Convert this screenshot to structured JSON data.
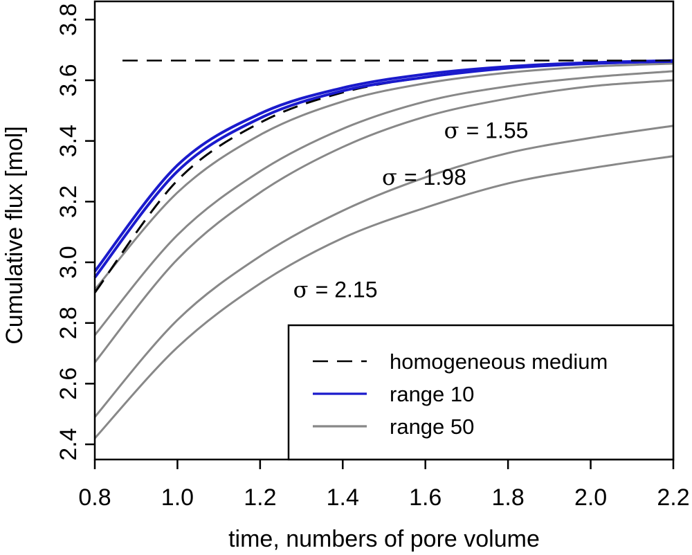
{
  "chart_data": {
    "type": "line",
    "xlabel": "time, numbers of pore volume",
    "ylabel": "Cumulative flux [mol]",
    "xlim": [
      0.8,
      2.2
    ],
    "ylim": [
      2.35,
      3.86
    ],
    "xticks": [
      0.8,
      1.0,
      1.2,
      1.4,
      1.6,
      1.8,
      2.0,
      2.2
    ],
    "xtick_labels": [
      "0.8",
      "1.0",
      "1.2",
      "1.4",
      "1.6",
      "1.8",
      "2.0",
      "2.2"
    ],
    "yticks": [
      2.4,
      2.6,
      2.8,
      3.0,
      3.2,
      3.4,
      3.6,
      3.8
    ],
    "ytick_labels": [
      "2.4",
      "2.6",
      "2.8",
      "3.0",
      "3.2",
      "3.4",
      "3.6",
      "3.8"
    ],
    "grid": false,
    "legend_position": "bottom-right",
    "legend": [
      {
        "label": "homogeneous medium",
        "color": "#000000",
        "style": "dashed"
      },
      {
        "label": "range 10",
        "color": "#1a1acc",
        "style": "solid"
      },
      {
        "label": "range 50",
        "color": "#888888",
        "style": "solid"
      }
    ],
    "reference_line": {
      "name": "asymptote",
      "y": 3.665,
      "color": "#000000",
      "style": "dashed"
    },
    "series": [
      {
        "name": "homogeneous medium",
        "group": "homogeneous medium",
        "color": "#000000",
        "style": "dashed",
        "x": [
          0.8,
          1.0,
          1.2,
          1.4,
          1.6,
          1.8,
          2.0,
          2.2
        ],
        "y": [
          2.9,
          3.27,
          3.46,
          3.56,
          3.61,
          3.64,
          3.655,
          3.665
        ]
      },
      {
        "name": "range 10 (1)",
        "group": "range 10",
        "color": "#1a1acc",
        "style": "solid",
        "x": [
          0.8,
          1.0,
          1.2,
          1.4,
          1.6,
          1.8,
          2.0,
          2.2
        ],
        "y": [
          2.97,
          3.32,
          3.49,
          3.575,
          3.62,
          3.645,
          3.658,
          3.665
        ]
      },
      {
        "name": "range 10 (2)",
        "group": "range 10",
        "color": "#1a1acc",
        "style": "solid",
        "x": [
          0.8,
          1.0,
          1.2,
          1.4,
          1.6,
          1.8,
          2.0,
          2.2
        ],
        "y": [
          2.95,
          3.3,
          3.475,
          3.565,
          3.61,
          3.64,
          3.655,
          3.662
        ]
      },
      {
        "name": "range 50 (1)",
        "group": "range 50",
        "color": "#888888",
        "style": "solid",
        "x": [
          0.8,
          1.0,
          1.2,
          1.4,
          1.6,
          1.8,
          2.0,
          2.2
        ],
        "y": [
          2.91,
          3.23,
          3.42,
          3.53,
          3.59,
          3.625,
          3.645,
          3.655
        ]
      },
      {
        "name": "range 50 (2) σ = 1.55",
        "group": "range 50",
        "color": "#888888",
        "style": "solid",
        "x": [
          0.8,
          1.0,
          1.2,
          1.4,
          1.6,
          1.8,
          2.0,
          2.2
        ],
        "y": [
          2.76,
          3.09,
          3.3,
          3.44,
          3.53,
          3.58,
          3.61,
          3.63
        ]
      },
      {
        "name": "range 50 (3)",
        "group": "range 50",
        "color": "#888888",
        "style": "solid",
        "x": [
          0.8,
          1.0,
          1.2,
          1.4,
          1.6,
          1.8,
          2.0,
          2.2
        ],
        "y": [
          2.67,
          3.01,
          3.23,
          3.38,
          3.48,
          3.54,
          3.58,
          3.6
        ]
      },
      {
        "name": "range 50 (4) σ = 1.98",
        "group": "range 50",
        "color": "#888888",
        "style": "solid",
        "x": [
          0.8,
          1.0,
          1.2,
          1.4,
          1.6,
          1.8,
          2.0,
          2.2
        ],
        "y": [
          2.49,
          2.81,
          3.02,
          3.17,
          3.28,
          3.36,
          3.41,
          3.45
        ]
      },
      {
        "name": "range 50 (5) σ = 2.15",
        "group": "range 50",
        "color": "#888888",
        "style": "solid",
        "x": [
          0.8,
          1.0,
          1.2,
          1.4,
          1.6,
          1.8,
          2.0,
          2.2
        ],
        "y": [
          2.42,
          2.72,
          2.93,
          3.08,
          3.18,
          3.26,
          3.31,
          3.35
        ]
      }
    ],
    "annotations": [
      {
        "symbol": "σ",
        "text": "= 1.55",
        "x": 1.645,
        "y": 3.41
      },
      {
        "symbol": "σ",
        "text": "= 1.98",
        "x": 1.495,
        "y": 3.255
      },
      {
        "symbol": "σ",
        "text": "= 2.15",
        "x": 1.28,
        "y": 2.885
      }
    ]
  }
}
